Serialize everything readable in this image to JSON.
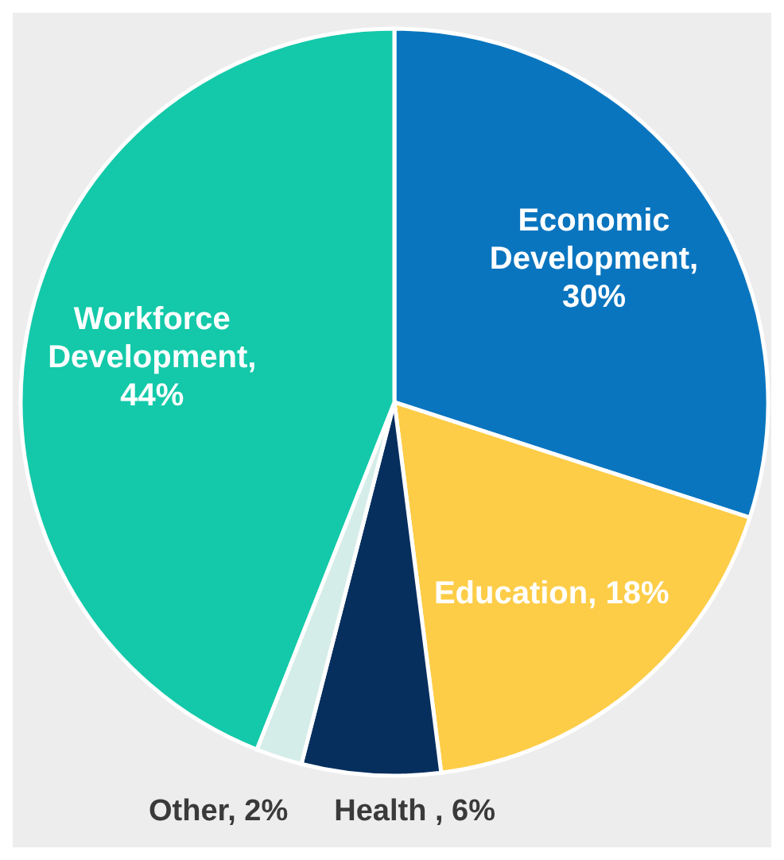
{
  "chart_data": {
    "type": "pie",
    "categories": [
      "Economic Development",
      "Education",
      "Health ",
      "Other",
      "Workforce Development"
    ],
    "values": [
      30,
      18,
      6,
      2,
      44
    ],
    "colors": [
      "#0a75bf",
      "#fdcd48",
      "#062f5e",
      "#d5ede8",
      "#13c9a9"
    ],
    "value_labels": [
      ", 30%",
      ", 18%",
      ", 6%",
      ", 2%",
      ", 44%"
    ]
  }
}
